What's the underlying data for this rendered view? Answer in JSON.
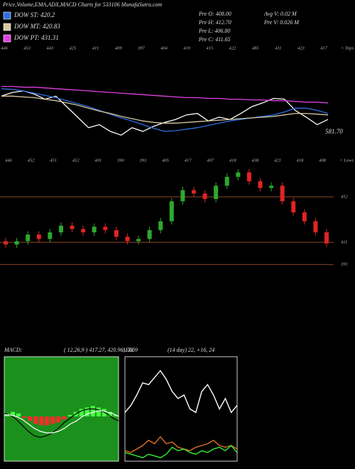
{
  "chart_data": [
    {
      "type": "line",
      "title": "Price,Volume,EMA,ADX,MACD Charts for 533106  MunafaSutra.com",
      "annotations": [
        "Pre  O: 408.00",
        "Pre  H: 412.70",
        "Pre  L: 406.80",
        "Pre  C: 411.65",
        "Avg V: 0.02  M",
        "Pre  V: 0.026  M"
      ],
      "last_label": "581.70",
      "tops": [
        446,
        453,
        443,
        425,
        411,
        409,
        397,
        404,
        410,
        415,
        422,
        485,
        411,
        423,
        417
      ],
      "tops_caption": "< Tops",
      "ylim": [
        380,
        470
      ],
      "series": [
        {
          "color": "#ffffff",
          "values": [
            446,
            451,
            453,
            449,
            442,
            446,
            432,
            418,
            404,
            408,
            399,
            394,
            404,
            399,
            406,
            411,
            415,
            421,
            423,
            413,
            418,
            415,
            423,
            432,
            437,
            443,
            442,
            427,
            418,
            408,
            415
          ]
        },
        {
          "name": "DOW ST: 420.2",
          "color": "#2f6fe0",
          "values": [
            456,
            455,
            453,
            450,
            447,
            444,
            440,
            436,
            432,
            427,
            422,
            417,
            413,
            408,
            403,
            399,
            400,
            402,
            404,
            407,
            410,
            413,
            415,
            417,
            419,
            421,
            425,
            430,
            430,
            427,
            423
          ]
        },
        {
          "name": "DOW MT: 420.83",
          "color": "#d8c8a0",
          "values": [
            446,
            446,
            445,
            444,
            442,
            440,
            437,
            434,
            430,
            426,
            423,
            419,
            416,
            413,
            411,
            410,
            410,
            411,
            412,
            413,
            414,
            415,
            416,
            417,
            418,
            419,
            421,
            423,
            423,
            422,
            421
          ]
        },
        {
          "name": "DOW PT: 431.31",
          "color": "#e040e0",
          "values": [
            459,
            459,
            458,
            458,
            457,
            456,
            455,
            454,
            453,
            452,
            451,
            450,
            449,
            448,
            447,
            446,
            445,
            444,
            444,
            443,
            443,
            442,
            442,
            441,
            441,
            440,
            440,
            439,
            438,
            438,
            437
          ]
        }
      ]
    },
    {
      "type": "candlestick",
      "lows": [
        446,
        452,
        451,
        452,
        401,
        390,
        393,
        405,
        417,
        407,
        418,
        438,
        421,
        418,
        408
      ],
      "lows_caption": "< Lows",
      "ylim": [
        370,
        488.5
      ],
      "yticks": [
        452,
        411,
        391
      ],
      "up_color": "#2ea82e",
      "down_color": "#e02424",
      "open": [
        412,
        409,
        412,
        418,
        414,
        420,
        426,
        423,
        420,
        425,
        422,
        416,
        412,
        414,
        422,
        430,
        448,
        458,
        455,
        450,
        462,
        470,
        474,
        466,
        460,
        462,
        448,
        438,
        430,
        420
      ],
      "high": [
        415,
        415,
        421,
        421,
        423,
        429,
        429,
        426,
        428,
        428,
        425,
        419,
        417,
        425,
        433,
        451,
        461,
        461,
        458,
        465,
        473,
        477,
        477,
        469,
        465,
        465,
        451,
        441,
        433,
        423
      ],
      "low": [
        406,
        406,
        409,
        411,
        411,
        417,
        420,
        417,
        417,
        419,
        413,
        409,
        409,
        411,
        419,
        427,
        445,
        452,
        447,
        447,
        459,
        467,
        463,
        457,
        457,
        445,
        435,
        427,
        417,
        407
      ],
      "close": [
        409,
        412,
        418,
        414,
        420,
        426,
        423,
        420,
        425,
        422,
        416,
        412,
        414,
        422,
        430,
        448,
        458,
        455,
        450,
        462,
        470,
        474,
        466,
        460,
        462,
        448,
        438,
        430,
        420,
        410
      ]
    },
    {
      "type": "macd",
      "title": "MACD:",
      "subtitle": "( 12,26,9 ) 417.27,  420.96,  -3.69",
      "ylim": [
        -30,
        40
      ],
      "background": "#1c901c",
      "up_color": "#44ff44",
      "down_color": "#ff2a2a",
      "values": [
        2,
        3,
        2,
        -1,
        -3,
        -5,
        -6,
        -6,
        -5,
        -4,
        -2,
        1,
        3,
        5,
        6,
        7,
        6,
        5,
        3,
        1
      ],
      "series": [
        {
          "color": "#000000",
          "values": [
            2,
            1,
            -2,
            -6,
            -10,
            -13,
            -14,
            -13,
            -11,
            -8,
            -4,
            -1,
            2,
            4,
            5,
            5,
            4,
            2,
            -1,
            -3
          ]
        },
        {
          "color": "#ffffff",
          "values": [
            1,
            1,
            0,
            -2,
            -5,
            -8,
            -10,
            -11,
            -11,
            -10,
            -8,
            -5,
            -3,
            0,
            2,
            3,
            4,
            3,
            2,
            0
          ]
        }
      ]
    },
    {
      "type": "adx",
      "title": "ADX",
      "subtitle": "(14 day) 22, +16,  24",
      "ylim": [
        0,
        60
      ],
      "series": [
        {
          "color": "#ffffff",
          "values": [
            28,
            32,
            38,
            45,
            44,
            48,
            52,
            47,
            40,
            36,
            38,
            30,
            28,
            40,
            44,
            38,
            30,
            36,
            28,
            32
          ]
        },
        {
          "color": "#e07020",
          "values": [
            6,
            5,
            7,
            9,
            12,
            10,
            14,
            10,
            11,
            8,
            7,
            6,
            8,
            9,
            10,
            12,
            9,
            8,
            9,
            7
          ]
        },
        {
          "color": "#33ee33",
          "values": [
            5,
            4,
            3,
            2,
            4,
            3,
            2,
            4,
            8,
            6,
            7,
            5,
            4,
            6,
            5,
            7,
            8,
            6,
            9,
            5
          ]
        }
      ]
    }
  ]
}
